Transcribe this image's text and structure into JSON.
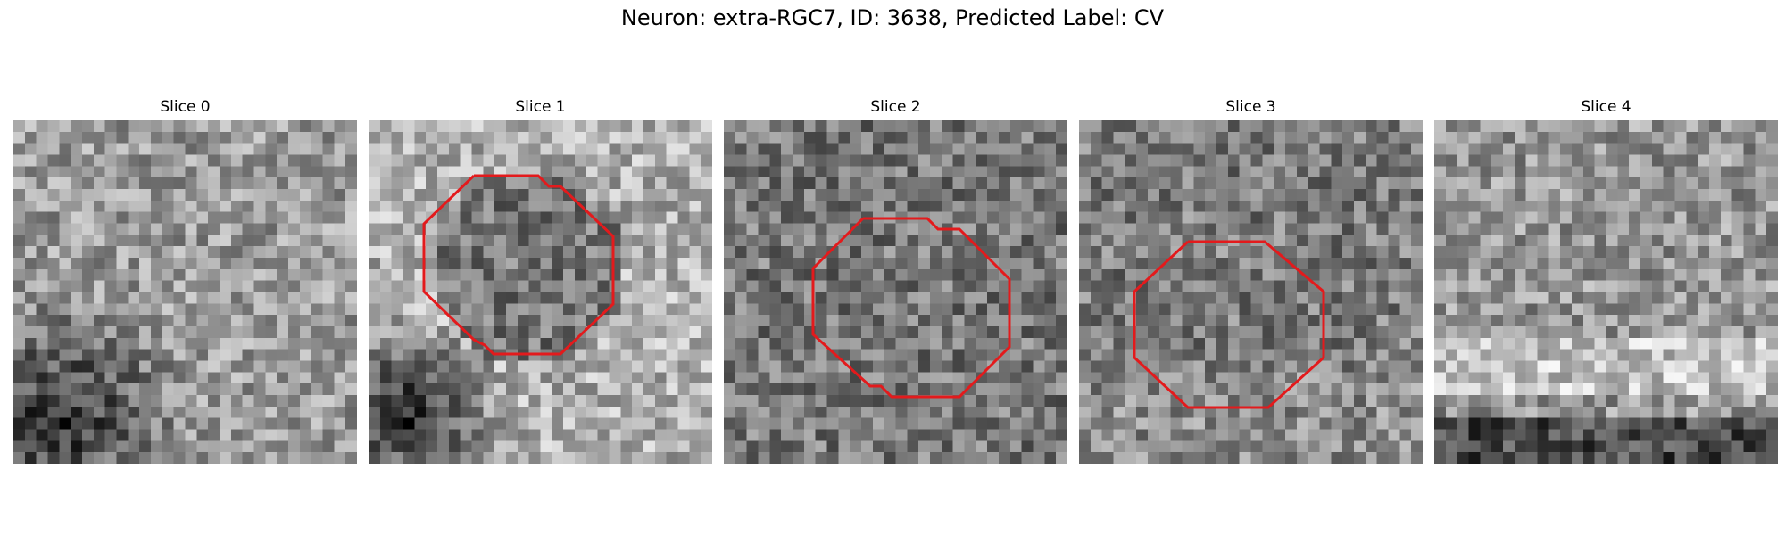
{
  "figure": {
    "title": "Neuron: extra-RGC7, ID: 3638, Predicted Label: CV"
  },
  "slices": [
    {
      "label": "Slice 0",
      "has_contour": false
    },
    {
      "label": "Slice 1",
      "has_contour": true
    },
    {
      "label": "Slice 2",
      "has_contour": true
    },
    {
      "label": "Slice 3",
      "has_contour": true
    },
    {
      "label": "Slice 4",
      "has_contour": false
    }
  ],
  "colors": {
    "contour": "#e31a1c",
    "background": "#ffffff"
  }
}
